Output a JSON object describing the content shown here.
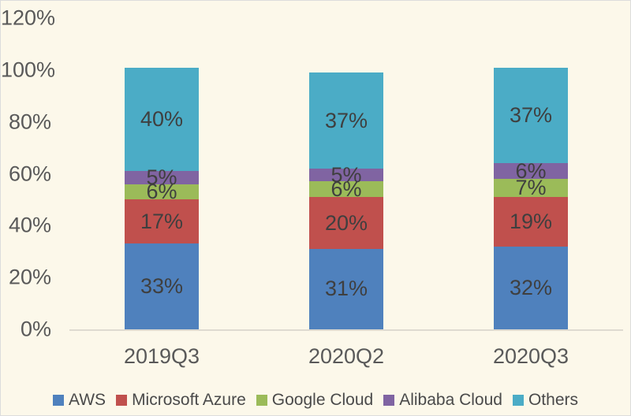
{
  "chart_data": {
    "type": "bar",
    "stacked": true,
    "title": "",
    "categories": [
      "2019Q3",
      "2020Q2",
      "2020Q3"
    ],
    "series": [
      {
        "name": "AWS",
        "color": "#4F81BD",
        "values": [
          33,
          31,
          32
        ],
        "labels": [
          "33%",
          "31%",
          "32%"
        ]
      },
      {
        "name": "Microsoft Azure",
        "color": "#C0504D",
        "values": [
          17,
          20,
          19
        ],
        "labels": [
          "17%",
          "20%",
          "19%"
        ]
      },
      {
        "name": "Google Cloud",
        "color": "#9BBB59",
        "values": [
          6,
          6,
          7
        ],
        "labels": [
          "6%",
          "6%",
          "7%"
        ]
      },
      {
        "name": "Alibaba Cloud",
        "color": "#8064A2",
        "values": [
          5,
          5,
          6
        ],
        "labels": [
          "5%",
          "5%",
          "6%"
        ]
      },
      {
        "name": "Others",
        "color": "#4BACC6",
        "values": [
          40,
          37,
          37
        ],
        "labels": [
          "40%",
          "37%",
          "37%"
        ]
      }
    ],
    "y_axis": {
      "min": 0,
      "max": 120,
      "ticks": [
        {
          "value": 0,
          "label": "0%"
        },
        {
          "value": 20,
          "label": "20%"
        },
        {
          "value": 40,
          "label": "40%"
        },
        {
          "value": 60,
          "label": "60%"
        },
        {
          "value": 80,
          "label": "80%"
        },
        {
          "value": 100,
          "label": "100%"
        },
        {
          "value": 120,
          "label": "120%"
        }
      ]
    },
    "xlabel": "",
    "ylabel": "",
    "grid": false,
    "legend_position": "bottom"
  },
  "colors": {
    "background": "#FCF8EA",
    "axis_line": "#DEDAD0",
    "tick_text": "#595959",
    "data_label_text": "#3F3F3F",
    "legend_text": "#4A4A4A",
    "border": "#DCDCDC"
  }
}
